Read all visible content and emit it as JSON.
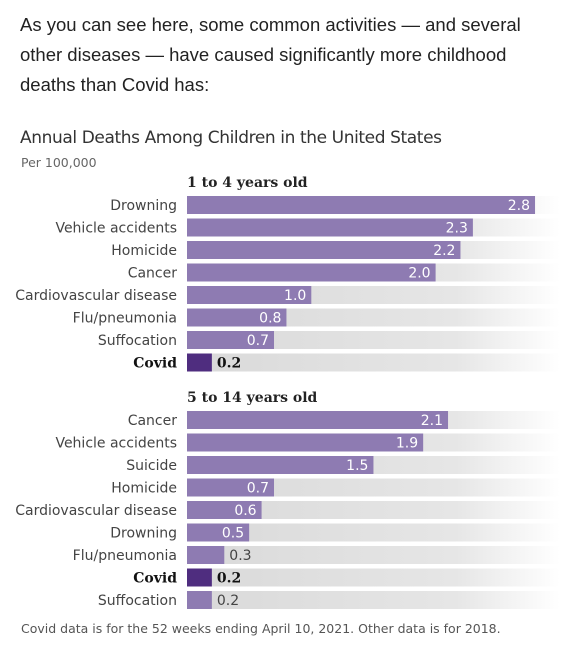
{
  "intro_text": "As you can see here, some common activities — and several other diseases — have caused significantly more childhood deaths than Covid has:",
  "chart_data": {
    "type": "bar",
    "title": "Annual Deaths Among Children in the United States",
    "subtitle": "Per 100,000",
    "highlight_category": "Covid",
    "colors": {
      "bar": "#8e7bb2",
      "highlight_bar": "#4f2d7f",
      "track_start": "#d9d9d9",
      "track_end": "#ffffff"
    },
    "panels": [
      {
        "title": "1 to 4 years old",
        "categories": [
          "Drowning",
          "Vehicle accidents",
          "Homicide",
          "Cancer",
          "Cardiovascular disease",
          "Flu/pneumonia",
          "Suffocation",
          "Covid"
        ],
        "values": [
          2.8,
          2.3,
          2.2,
          2.0,
          1.0,
          0.8,
          0.7,
          0.2
        ]
      },
      {
        "title": "5 to 14 years old",
        "categories": [
          "Cancer",
          "Vehicle accidents",
          "Suicide",
          "Homicide",
          "Cardiovascular disease",
          "Drowning",
          "Flu/pneumonia",
          "Covid",
          "Suffocation"
        ],
        "values": [
          2.1,
          1.9,
          1.5,
          0.7,
          0.6,
          0.5,
          0.3,
          0.2,
          0.2
        ]
      }
    ],
    "footnote": "Covid data is for the 52 weeks ending April 10, 2021. Other data is for 2018."
  }
}
